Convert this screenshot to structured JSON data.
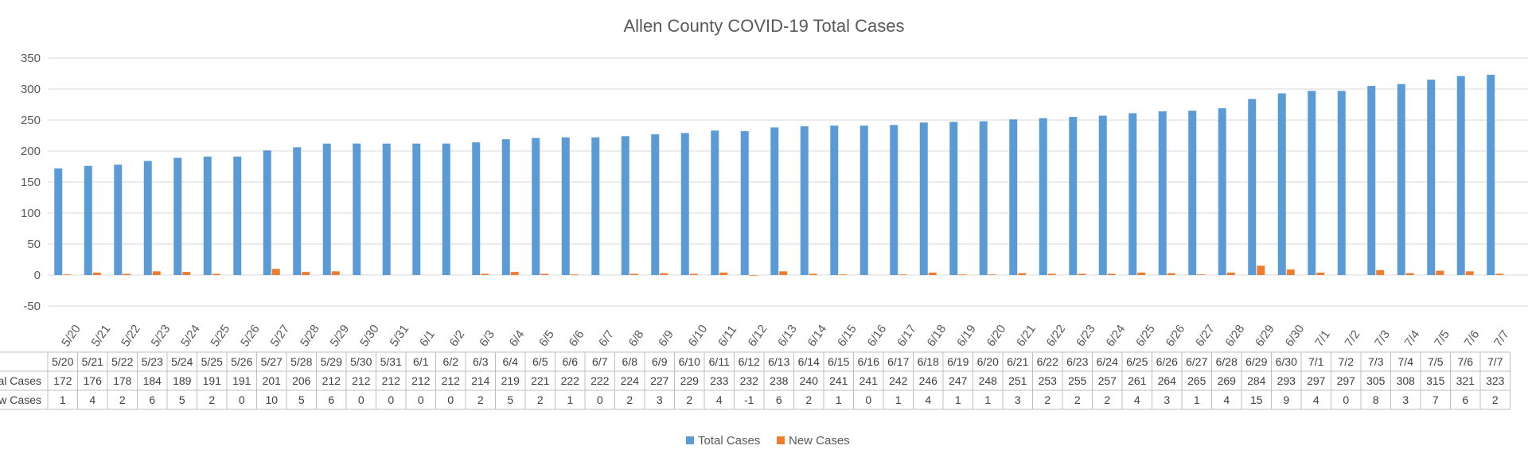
{
  "chart_data": {
    "type": "bar",
    "title": "Allen County COVID-19 Total Cases",
    "categories": [
      "5/20",
      "5/21",
      "5/22",
      "5/23",
      "5/24",
      "5/25",
      "5/26",
      "5/27",
      "5/28",
      "5/29",
      "5/30",
      "5/31",
      "6/1",
      "6/2",
      "6/3",
      "6/4",
      "6/5",
      "6/6",
      "6/7",
      "6/8",
      "6/9",
      "6/10",
      "6/11",
      "6/12",
      "6/13",
      "6/14",
      "6/15",
      "6/16",
      "6/17",
      "6/18",
      "6/19",
      "6/20",
      "6/21",
      "6/22",
      "6/23",
      "6/24",
      "6/25",
      "6/26",
      "6/27",
      "6/28",
      "6/29",
      "6/30",
      "7/1",
      "7/2",
      "7/3",
      "7/4",
      "7/5",
      "7/6",
      "7/7"
    ],
    "series": [
      {
        "name": "Total Cases",
        "color": "#5B9BD5",
        "table_label": "Total Cases",
        "values": [
          172,
          176,
          178,
          184,
          189,
          191,
          191,
          201,
          206,
          212,
          212,
          212,
          212,
          212,
          214,
          219,
          221,
          222,
          222,
          224,
          227,
          229,
          233,
          232,
          238,
          240,
          241,
          241,
          242,
          246,
          247,
          248,
          251,
          253,
          255,
          257,
          261,
          264,
          265,
          269,
          284,
          293,
          297,
          297,
          305,
          308,
          315,
          321,
          323
        ]
      },
      {
        "name": "New Cases",
        "color": "#ED7D31",
        "table_label": "New Cases",
        "values": [
          1,
          4,
          2,
          6,
          5,
          2,
          0,
          10,
          5,
          6,
          0,
          0,
          0,
          0,
          2,
          5,
          2,
          1,
          0,
          2,
          3,
          2,
          4,
          -1,
          6,
          2,
          1,
          0,
          1,
          4,
          1,
          1,
          3,
          2,
          2,
          2,
          4,
          3,
          1,
          4,
          15,
          9,
          4,
          0,
          8,
          3,
          7,
          6,
          2
        ]
      }
    ],
    "y_ticks": [
      -50,
      0,
      50,
      100,
      150,
      200,
      250,
      300,
      350
    ],
    "ylim": [
      -50,
      350
    ],
    "grid": true,
    "legend_position": "bottom",
    "data_table": true
  }
}
